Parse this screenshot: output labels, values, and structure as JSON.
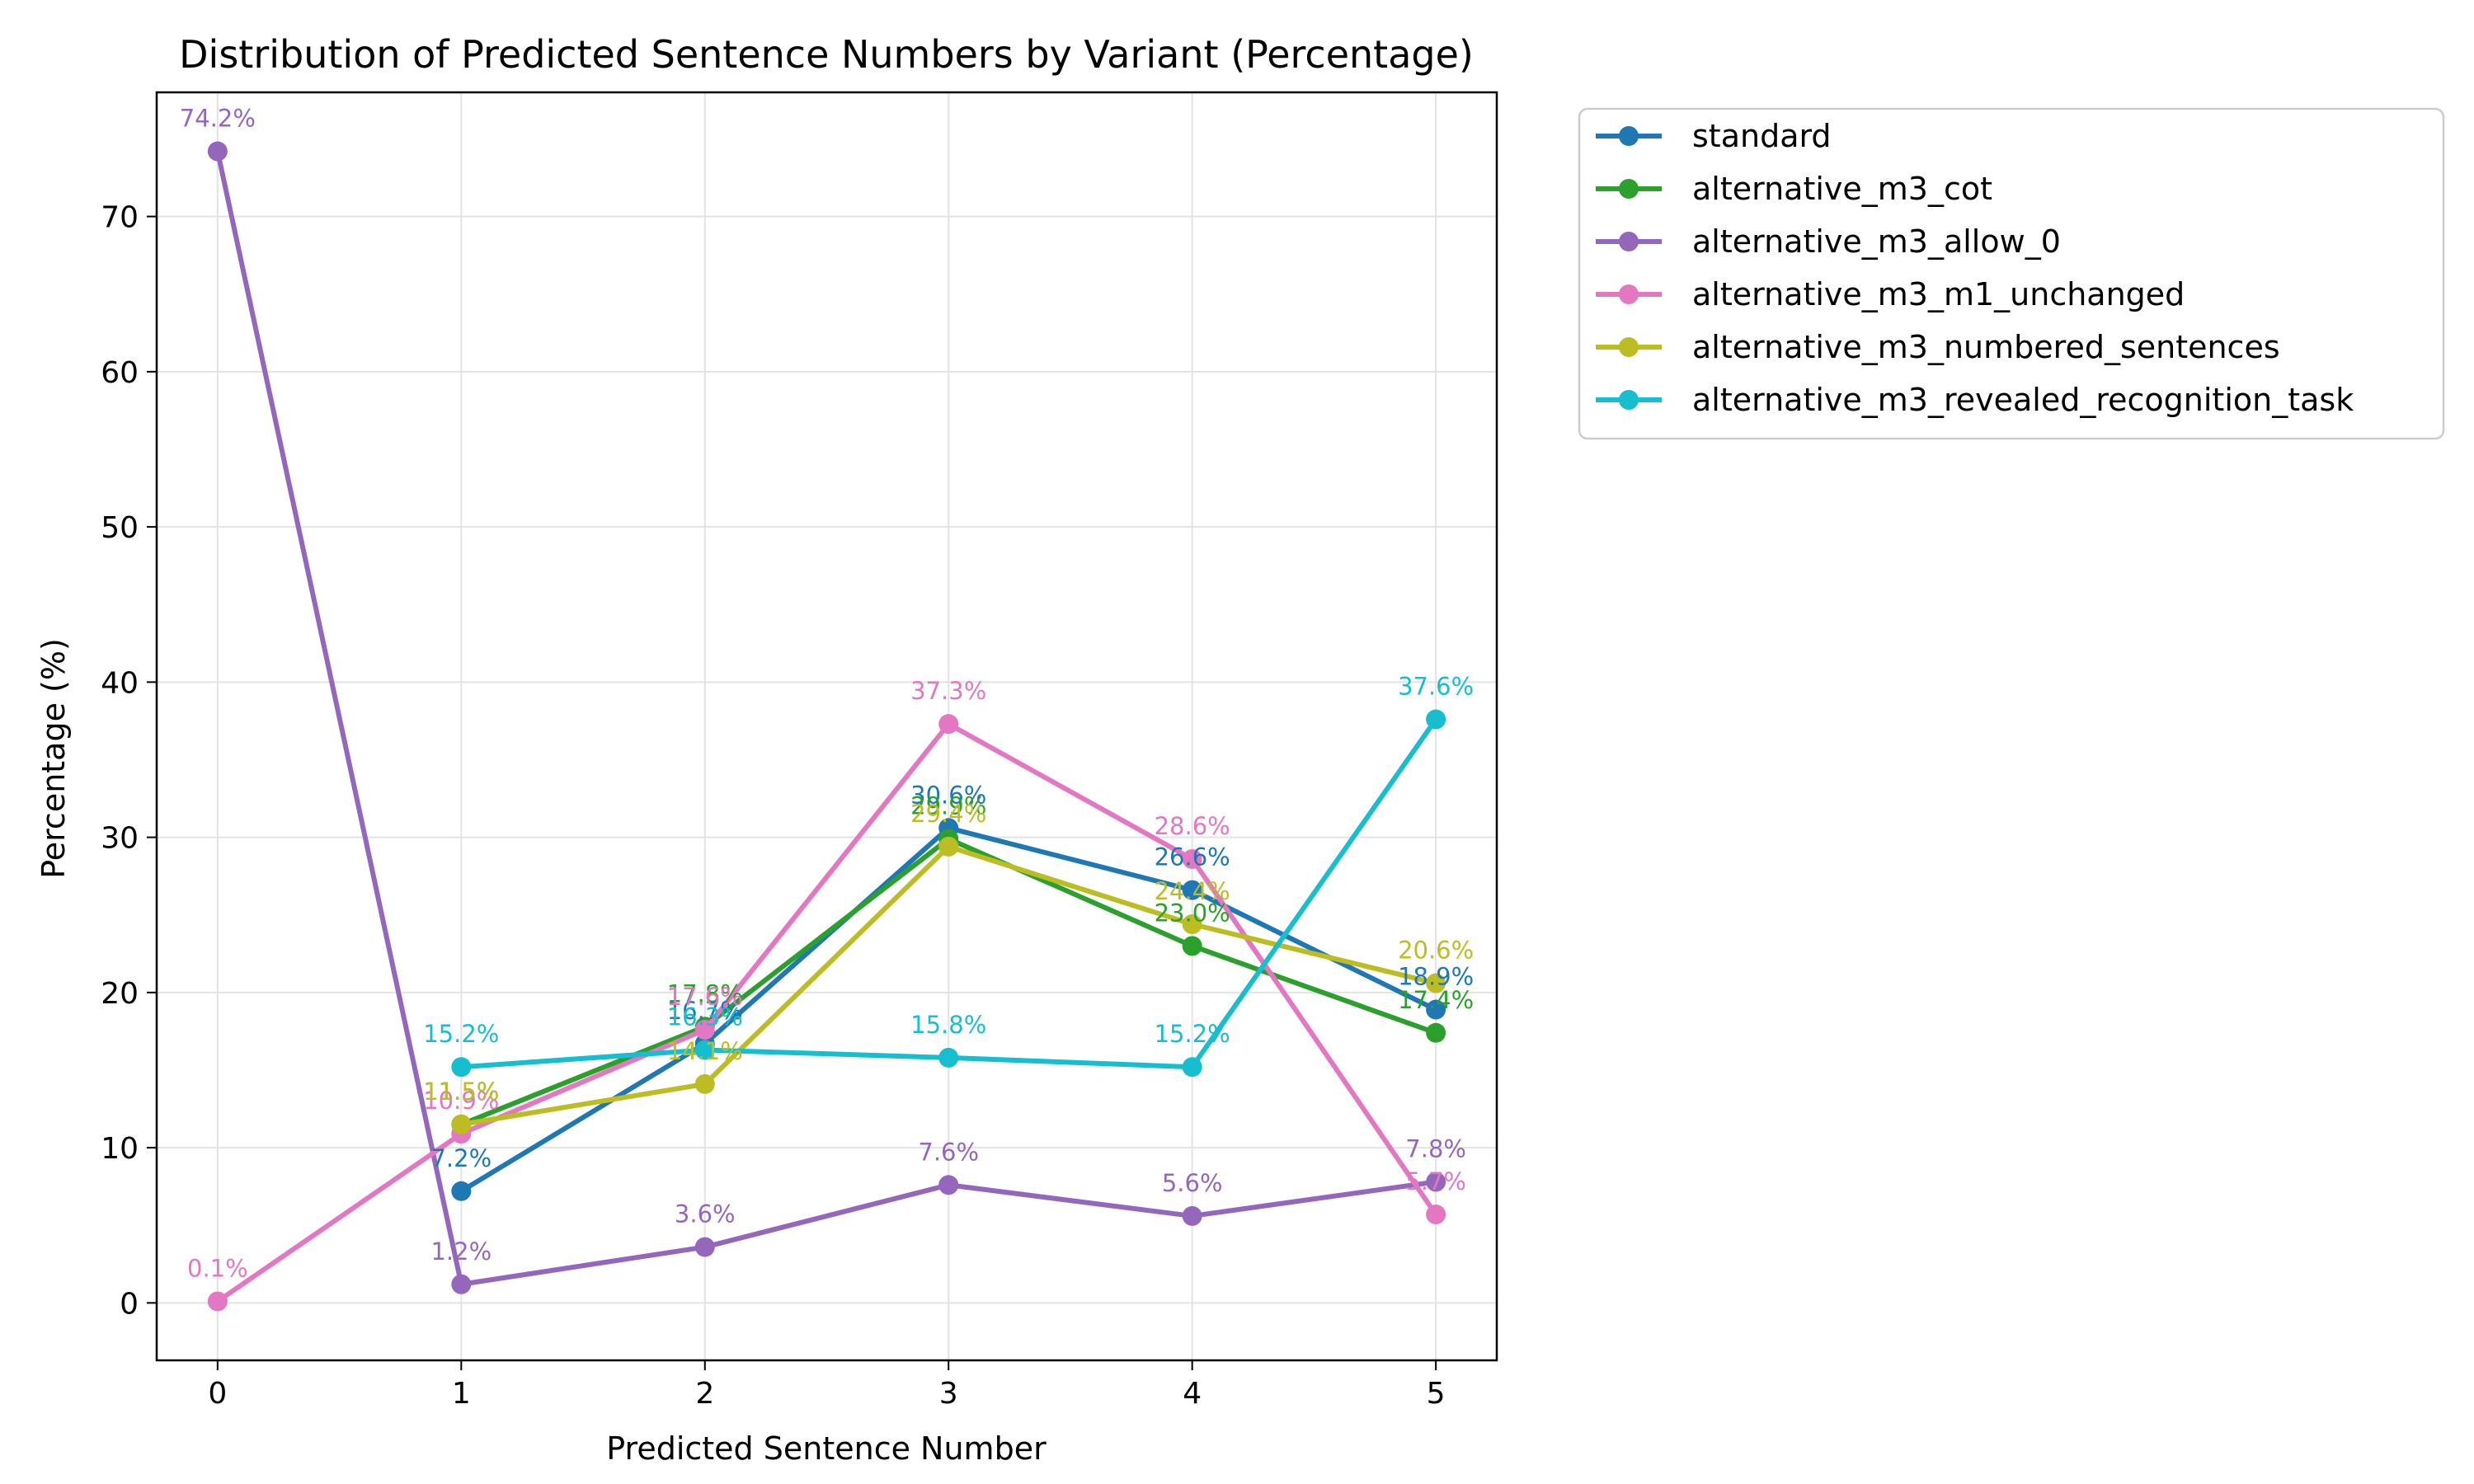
{
  "chart_data": {
    "type": "line",
    "title": "Distribution of Predicted Sentence Numbers by Variant (Percentage)",
    "xlabel": "Predicted Sentence Number",
    "ylabel": "Percentage (%)",
    "xlim": [
      -0.25,
      5.25
    ],
    "ylim": [
      -3.7,
      78.0
    ],
    "x_ticks": [
      0,
      1,
      2,
      3,
      4,
      5
    ],
    "y_ticks": [
      0,
      10,
      20,
      30,
      40,
      50,
      60,
      70
    ],
    "grid": true,
    "legend_position": "outside-top-right",
    "series": [
      {
        "name": "standard",
        "color": "#1f77b4",
        "x": [
          1,
          2,
          3,
          4,
          5
        ],
        "y": [
          7.2,
          16.7,
          30.6,
          26.6,
          18.9
        ],
        "labels": [
          "7.2%",
          "16.7%",
          "30.6%",
          "26.6%",
          "18.9%"
        ]
      },
      {
        "name": "alternative_m3_cot",
        "color": "#2ca02c",
        "x": [
          1,
          2,
          3,
          4,
          5
        ],
        "y": [
          11.5,
          17.8,
          29.9,
          23.0,
          17.4
        ],
        "labels": [
          "11.5%",
          "17.8%",
          "29.9%",
          "23.0%",
          "17.4%"
        ]
      },
      {
        "name": "alternative_m3_allow_0",
        "color": "#9467bd",
        "x": [
          0,
          1,
          2,
          3,
          4,
          5
        ],
        "y": [
          74.2,
          1.2,
          3.6,
          7.6,
          5.6,
          7.8
        ],
        "labels": [
          "74.2%",
          "1.2%",
          "3.6%",
          "7.6%",
          "5.6%",
          "7.8%"
        ]
      },
      {
        "name": "alternative_m3_m1_unchanged",
        "color": "#e377c2",
        "x": [
          0,
          1,
          2,
          3,
          4,
          5
        ],
        "y": [
          0.1,
          10.9,
          17.6,
          37.3,
          28.6,
          5.7
        ],
        "labels": [
          "0.1%",
          "10.9%",
          "17.6%",
          "37.3%",
          "28.6%",
          "5.7%"
        ]
      },
      {
        "name": "alternative_m3_numbered_sentences",
        "color": "#bcbd22",
        "x": [
          1,
          2,
          3,
          4,
          5
        ],
        "y": [
          11.5,
          14.1,
          29.4,
          24.4,
          20.6
        ],
        "labels": [
          "11.5%",
          "14.1%",
          "29.4%",
          "24.4%",
          "20.6%"
        ]
      },
      {
        "name": "alternative_m3_revealed_recognition_task",
        "color": "#17becf",
        "x": [
          1,
          2,
          3,
          4,
          5
        ],
        "y": [
          15.2,
          16.3,
          15.8,
          15.2,
          37.6
        ],
        "labels": [
          "15.2%",
          "16.3%",
          "15.8%",
          "15.2%",
          "37.6%"
        ]
      }
    ]
  }
}
